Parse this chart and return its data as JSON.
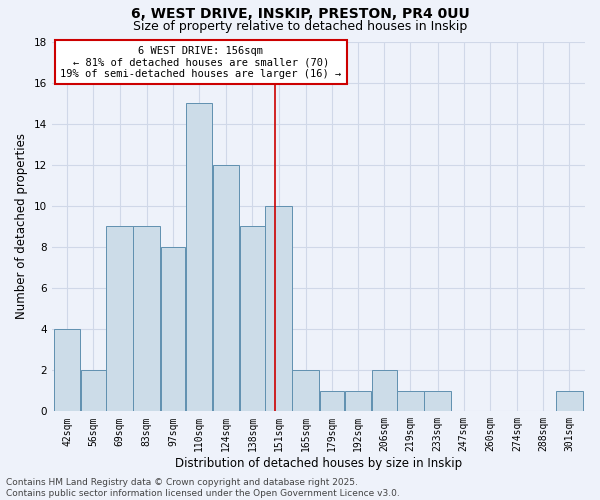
{
  "title": "6, WEST DRIVE, INSKIP, PRESTON, PR4 0UU",
  "subtitle": "Size of property relative to detached houses in Inskip",
  "xlabel": "Distribution of detached houses by size in Inskip",
  "ylabel": "Number of detached properties",
  "bar_color": "#ccdce8",
  "bar_edge_color": "#6090b0",
  "background_color": "#eef2fa",
  "grid_color": "#d0d8e8",
  "bins": [
    42,
    56,
    69,
    83,
    97,
    110,
    124,
    138,
    151,
    165,
    179,
    192,
    206,
    219,
    233,
    247,
    260,
    274,
    288,
    301,
    315
  ],
  "counts": [
    4,
    2,
    9,
    9,
    8,
    15,
    12,
    9,
    10,
    2,
    1,
    1,
    2,
    1,
    1,
    0,
    0,
    0,
    0,
    1
  ],
  "property_size": 156,
  "vline_color": "#cc0000",
  "annotation_text": "6 WEST DRIVE: 156sqm\n← 81% of detached houses are smaller (70)\n19% of semi-detached houses are larger (16) →",
  "annotation_box_color": "#ffffff",
  "annotation_border_color": "#cc0000",
  "ylim": [
    0,
    18
  ],
  "yticks": [
    0,
    2,
    4,
    6,
    8,
    10,
    12,
    14,
    16,
    18
  ],
  "footer_text": "Contains HM Land Registry data © Crown copyright and database right 2025.\nContains public sector information licensed under the Open Government Licence v3.0.",
  "title_fontsize": 10,
  "subtitle_fontsize": 9,
  "axis_label_fontsize": 8.5,
  "tick_fontsize": 7,
  "annotation_fontsize": 7.5,
  "footer_fontsize": 6.5
}
